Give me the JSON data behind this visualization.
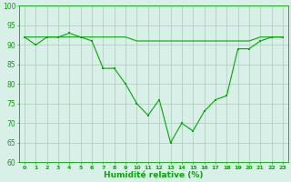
{
  "x": [
    0,
    1,
    2,
    3,
    4,
    5,
    6,
    7,
    8,
    9,
    10,
    11,
    12,
    13,
    14,
    15,
    16,
    17,
    18,
    19,
    20,
    21,
    22,
    23
  ],
  "y_line1": [
    92,
    90,
    92,
    92,
    93,
    92,
    91,
    84,
    84,
    80,
    75,
    72,
    76,
    65,
    70,
    68,
    73,
    76,
    77,
    89,
    89,
    91,
    92,
    92
  ],
  "y_line2": [
    92,
    92,
    92,
    92,
    92,
    92,
    92,
    92,
    92,
    92,
    91,
    91,
    91,
    91,
    91,
    91,
    91,
    91,
    91,
    91,
    91,
    92,
    92,
    92
  ],
  "line_color": "#00aa00",
  "bg_color": "#d8f0e8",
  "grid_color": "#aaccbb",
  "xlabel": "Humidité relative (%)",
  "xlim": [
    -0.5,
    23.5
  ],
  "ylim": [
    60,
    100
  ],
  "yticks": [
    60,
    65,
    70,
    75,
    80,
    85,
    90,
    95,
    100
  ],
  "xticks": [
    0,
    1,
    2,
    3,
    4,
    5,
    6,
    7,
    8,
    9,
    10,
    11,
    12,
    13,
    14,
    15,
    16,
    17,
    18,
    19,
    20,
    21,
    22,
    23
  ],
  "marker_size": 2.0,
  "linewidth": 0.8
}
